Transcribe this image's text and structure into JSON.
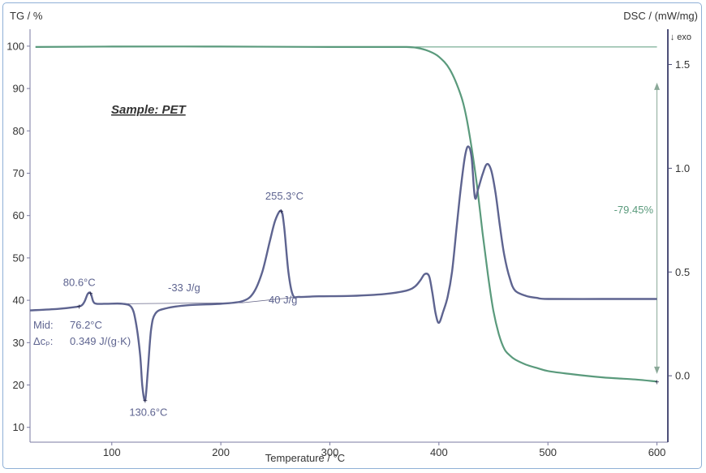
{
  "chart_data": {
    "type": "line",
    "sample_label": "Sample: PET",
    "x_axis": {
      "title": "Temperature / °C",
      "range": [
        25,
        610
      ],
      "ticks": [
        100,
        200,
        300,
        400,
        500,
        600
      ]
    },
    "left_axis": {
      "title": "TG / %",
      "range": [
        6.5,
        104
      ],
      "ticks": [
        10,
        20,
        30,
        40,
        50,
        60,
        70,
        80,
        90,
        100
      ]
    },
    "right_axis": {
      "title": "DSC / (mW/mg)",
      "exo_label": "↓ exo",
      "range": [
        -0.32,
        1.67
      ],
      "ticks": [
        "0.0",
        "0.5",
        "1.0",
        "1.5"
      ]
    },
    "series": [
      {
        "id": "tg",
        "axis": "left",
        "color": "#5a9a7c",
        "x": [
          30,
          100,
          200,
          300,
          350,
          370,
          380,
          390,
          400,
          410,
          420,
          425,
          430,
          435,
          440,
          445,
          450,
          455,
          460,
          465,
          470,
          480,
          490,
          500,
          520,
          550,
          580,
          600
        ],
        "y": [
          99.8,
          99.9,
          99.9,
          99.8,
          99.8,
          99.8,
          99.6,
          98.9,
          97.5,
          94.5,
          88.5,
          83.5,
          76.0,
          67.0,
          56.0,
          46.0,
          37.5,
          32.0,
          28.5,
          27.0,
          26.0,
          24.8,
          24.0,
          23.3,
          22.6,
          21.8,
          21.3,
          20.8
        ]
      },
      {
        "id": "dsc",
        "axis": "right",
        "color": "#5e6490",
        "x": [
          25,
          50,
          65,
          72,
          75,
          78,
          80.6,
          83,
          86,
          95,
          110,
          118,
          122,
          126,
          128,
          130.6,
          133,
          136,
          140,
          150,
          170,
          200,
          220,
          230,
          238,
          245,
          250,
          255.3,
          258,
          262,
          266,
          272,
          290,
          320,
          350,
          370,
          378,
          383,
          387,
          391,
          394,
          397,
          400,
          404,
          408,
          412,
          416,
          420,
          424,
          427,
          430,
          433,
          436,
          440,
          444,
          448,
          452,
          456,
          460,
          465,
          470,
          480,
          490,
          500,
          550,
          600
        ],
        "y": [
          0.315,
          0.322,
          0.33,
          0.338,
          0.358,
          0.395,
          0.398,
          0.358,
          0.347,
          0.347,
          0.347,
          0.33,
          0.26,
          0.1,
          -0.05,
          -0.118,
          0.02,
          0.22,
          0.3,
          0.325,
          0.34,
          0.347,
          0.36,
          0.4,
          0.5,
          0.65,
          0.75,
          0.795,
          0.72,
          0.5,
          0.39,
          0.38,
          0.383,
          0.385,
          0.394,
          0.41,
          0.43,
          0.46,
          0.49,
          0.48,
          0.4,
          0.3,
          0.255,
          0.31,
          0.38,
          0.5,
          0.7,
          0.9,
          1.06,
          1.105,
          1.05,
          0.86,
          0.9,
          0.97,
          1.02,
          0.99,
          0.88,
          0.72,
          0.58,
          0.47,
          0.41,
          0.385,
          0.375,
          0.37,
          0.37,
          0.37
        ]
      }
    ],
    "annotations": [
      {
        "id": "peak-80",
        "text": "80.6°C",
        "x": 80.6,
        "y": 0.398
      },
      {
        "id": "peak-130",
        "text": "130.6°C",
        "x": 130.6,
        "y": -0.118
      },
      {
        "id": "peak-255",
        "text": "255.3°C",
        "x": 255.3,
        "y": 0.795
      },
      {
        "id": "enthalpy-cold",
        "text": "-33 J/g"
      },
      {
        "id": "enthalpy-melt",
        "text": "40 J/g"
      },
      {
        "id": "mass-loss",
        "text": "-79.45%"
      }
    ],
    "glass_transition": {
      "mid_label": "Mid:",
      "mid_value": "76.2°C",
      "dcp_label": "Δcₚ:",
      "dcp_value": "0.349 J/(g·K)"
    }
  }
}
